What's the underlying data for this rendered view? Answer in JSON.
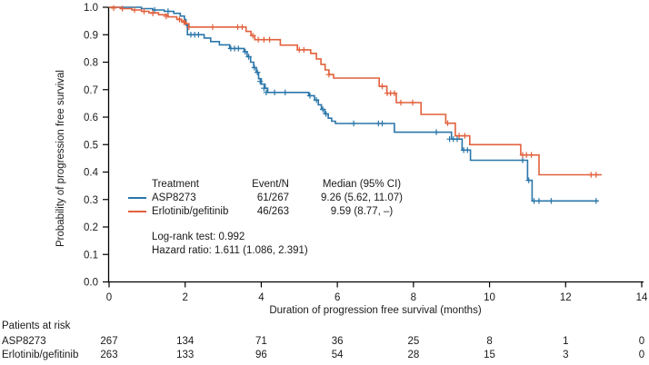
{
  "chart_data": {
    "type": "line",
    "subtype": "kaplan-meier-step",
    "title": "",
    "xlabel": "Duration of progression free survival (months)",
    "ylabel": "Probability of progression free survival",
    "xlim": [
      0,
      14
    ],
    "ylim": [
      0.0,
      1.0
    ],
    "xticks": [
      "0",
      "2",
      "4",
      "6",
      "8",
      "10",
      "12",
      "14"
    ],
    "yticks": [
      "1.0",
      "0.9",
      "0.8",
      "0.7",
      "0.6",
      "0.5",
      "0.4",
      "0.3",
      "0.2",
      "0.1",
      "0.0"
    ],
    "grid": false,
    "legend_position": "inside-lower-left",
    "axis_color": "#000000",
    "series": [
      {
        "name": "ASP8273",
        "color": "#2A76A9",
        "end_month": 12.85,
        "steps": [
          [
            0,
            1.0
          ],
          [
            0.85,
            0.995
          ],
          [
            1.15,
            0.99
          ],
          [
            1.45,
            0.985
          ],
          [
            1.7,
            0.978
          ],
          [
            1.87,
            0.968
          ],
          [
            1.98,
            0.955
          ],
          [
            2.02,
            0.935
          ],
          [
            2.06,
            0.9
          ],
          [
            2.5,
            0.888
          ],
          [
            2.67,
            0.875
          ],
          [
            2.9,
            0.863
          ],
          [
            3.17,
            0.85
          ],
          [
            3.55,
            0.838
          ],
          [
            3.63,
            0.82
          ],
          [
            3.72,
            0.8
          ],
          [
            3.8,
            0.78
          ],
          [
            3.87,
            0.763
          ],
          [
            3.93,
            0.74
          ],
          [
            4.0,
            0.72
          ],
          [
            4.1,
            0.705
          ],
          [
            4.17,
            0.69
          ],
          [
            5.25,
            0.678
          ],
          [
            5.4,
            0.662
          ],
          [
            5.5,
            0.645
          ],
          [
            5.58,
            0.628
          ],
          [
            5.67,
            0.612
          ],
          [
            5.76,
            0.596
          ],
          [
            5.85,
            0.585
          ],
          [
            5.95,
            0.577
          ],
          [
            7.5,
            0.545
          ],
          [
            9.0,
            0.52
          ],
          [
            9.28,
            0.48
          ],
          [
            9.5,
            0.443
          ],
          [
            11.0,
            0.37
          ],
          [
            11.12,
            0.295
          ]
        ],
        "censors": [
          [
            1.2,
            0.99
          ],
          [
            1.55,
            0.985
          ],
          [
            2.15,
            0.9
          ],
          [
            2.25,
            0.9
          ],
          [
            2.35,
            0.9
          ],
          [
            3.2,
            0.85
          ],
          [
            3.3,
            0.85
          ],
          [
            3.4,
            0.85
          ],
          [
            3.58,
            0.838
          ],
          [
            3.67,
            0.82
          ],
          [
            3.82,
            0.78
          ],
          [
            3.9,
            0.763
          ],
          [
            3.97,
            0.73
          ],
          [
            4.07,
            0.705
          ],
          [
            4.13,
            0.69
          ],
          [
            4.35,
            0.69
          ],
          [
            4.63,
            0.69
          ],
          [
            5.28,
            0.678
          ],
          [
            5.45,
            0.662
          ],
          [
            5.62,
            0.628
          ],
          [
            5.7,
            0.612
          ],
          [
            6.43,
            0.577
          ],
          [
            7.08,
            0.577
          ],
          [
            7.18,
            0.577
          ],
          [
            8.6,
            0.545
          ],
          [
            8.95,
            0.52
          ],
          [
            9.05,
            0.52
          ],
          [
            9.15,
            0.52
          ],
          [
            9.32,
            0.48
          ],
          [
            9.42,
            0.48
          ],
          [
            10.87,
            0.443
          ],
          [
            11.03,
            0.37
          ],
          [
            11.17,
            0.295
          ],
          [
            11.3,
            0.295
          ],
          [
            11.62,
            0.295
          ],
          [
            12.8,
            0.295
          ]
        ]
      },
      {
        "name": "Erlotinib/gefitinib",
        "color": "#E2603C",
        "end_month": 12.95,
        "steps": [
          [
            0,
            1.0
          ],
          [
            0.3,
            0.995
          ],
          [
            0.6,
            0.99
          ],
          [
            0.85,
            0.985
          ],
          [
            1.05,
            0.98
          ],
          [
            1.3,
            0.973
          ],
          [
            1.55,
            0.965
          ],
          [
            1.78,
            0.957
          ],
          [
            1.9,
            0.95
          ],
          [
            2.0,
            0.94
          ],
          [
            2.1,
            0.928
          ],
          [
            3.6,
            0.912
          ],
          [
            3.73,
            0.897
          ],
          [
            3.83,
            0.882
          ],
          [
            4.5,
            0.862
          ],
          [
            4.95,
            0.845
          ],
          [
            5.3,
            0.832
          ],
          [
            5.45,
            0.812
          ],
          [
            5.57,
            0.792
          ],
          [
            5.68,
            0.772
          ],
          [
            5.78,
            0.755
          ],
          [
            5.9,
            0.742
          ],
          [
            7.1,
            0.712
          ],
          [
            7.3,
            0.687
          ],
          [
            7.55,
            0.653
          ],
          [
            8.2,
            0.61
          ],
          [
            8.85,
            0.578
          ],
          [
            9.1,
            0.532
          ],
          [
            9.48,
            0.5
          ],
          [
            10.82,
            0.462
          ],
          [
            11.3,
            0.39
          ]
        ],
        "censors": [
          [
            0.12,
            0.997
          ],
          [
            0.35,
            0.995
          ],
          [
            0.67,
            0.99
          ],
          [
            0.92,
            0.985
          ],
          [
            1.15,
            0.978
          ],
          [
            1.5,
            0.967
          ],
          [
            1.85,
            0.955
          ],
          [
            1.97,
            0.945
          ],
          [
            2.1,
            0.928
          ],
          [
            2.72,
            0.928
          ],
          [
            3.38,
            0.928
          ],
          [
            3.5,
            0.928
          ],
          [
            3.78,
            0.897
          ],
          [
            3.92,
            0.882
          ],
          [
            4.07,
            0.882
          ],
          [
            4.22,
            0.882
          ],
          [
            5.0,
            0.845
          ],
          [
            5.12,
            0.845
          ],
          [
            5.78,
            0.755
          ],
          [
            7.18,
            0.712
          ],
          [
            7.31,
            0.687
          ],
          [
            7.4,
            0.687
          ],
          [
            7.5,
            0.687
          ],
          [
            7.67,
            0.653
          ],
          [
            7.98,
            0.653
          ],
          [
            8.9,
            0.578
          ],
          [
            9.2,
            0.532
          ],
          [
            9.35,
            0.532
          ],
          [
            10.87,
            0.462
          ],
          [
            10.97,
            0.462
          ],
          [
            11.1,
            0.462
          ],
          [
            12.67,
            0.39
          ],
          [
            12.8,
            0.39
          ]
        ]
      }
    ]
  },
  "legend": {
    "header": [
      "Treatment",
      "Event/N",
      "Median (95% CI)"
    ],
    "rows": [
      {
        "treatment": "ASP8273",
        "event_n": "61/267",
        "median": "9.26 (5.62, 11.07)",
        "color": "#2A76A9"
      },
      {
        "treatment": "Erlotinib/gefitinib",
        "event_n": "46/263",
        "median": "9.59 (8.77, –)",
        "color": "#E2603C"
      }
    ],
    "log_rank": "Log-rank test: 0.992",
    "hazard_ratio": "Hazard ratio: 1.611 (1.086, 2.391)"
  },
  "patients_at_risk": {
    "title": "Patients at risk",
    "months": [
      "0",
      "2",
      "4",
      "6",
      "8",
      "10",
      "12",
      "14"
    ],
    "rows": [
      {
        "label": "ASP8273",
        "counts": [
          "267",
          "134",
          "71",
          "36",
          "25",
          "8",
          "1",
          "0"
        ]
      },
      {
        "label": "Erlotinib/gefitinib",
        "counts": [
          "263",
          "133",
          "96",
          "54",
          "28",
          "15",
          "3",
          "0"
        ]
      }
    ]
  }
}
